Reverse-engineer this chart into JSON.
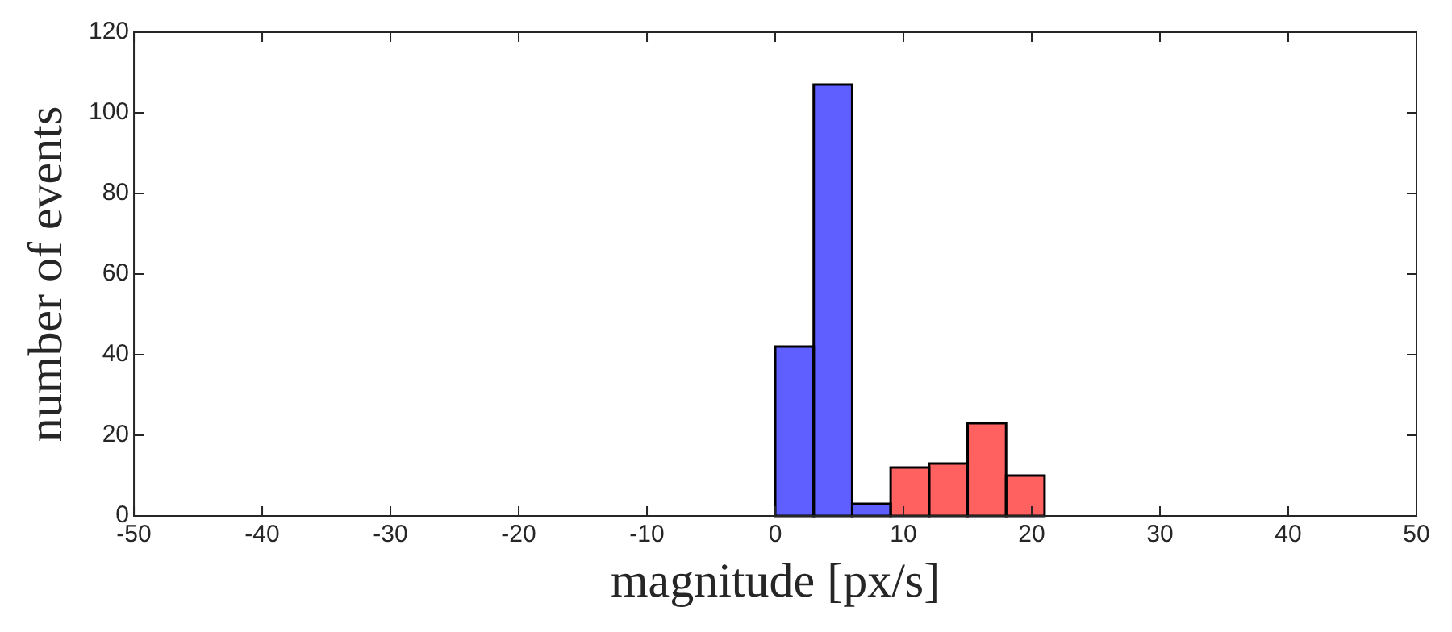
{
  "chart_data": {
    "type": "histogram",
    "xlabel": "magnitude [px/s]",
    "ylabel": "number of events",
    "bins": [
      0,
      3,
      6,
      9,
      12,
      15,
      18,
      21
    ],
    "series": [
      {
        "color": "#5f5fff",
        "values": [
          42,
          107,
          3,
          null,
          null,
          null,
          null
        ]
      },
      {
        "color": "#ff6060",
        "values": [
          null,
          null,
          null,
          12,
          13,
          23,
          10
        ]
      }
    ],
    "xlim": [
      -50,
      50
    ],
    "xticks": [
      -50,
      -40,
      -30,
      -20,
      -10,
      0,
      10,
      20,
      30,
      40,
      50
    ],
    "ylim": [
      0,
      120
    ],
    "yticks": [
      0,
      20,
      40,
      60,
      80,
      100,
      120
    ],
    "grid": false,
    "legend": false
  }
}
